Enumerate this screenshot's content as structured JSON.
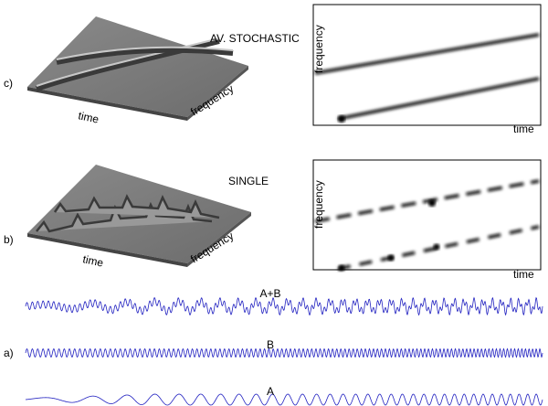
{
  "panels": [
    {
      "label": "c)",
      "title": "AV. STOCHASTIC",
      "surface": {
        "x_label": "time",
        "y_label": "frequency"
      },
      "tf_plot": {
        "x_label": "time",
        "y_label": "frequency"
      }
    },
    {
      "label": "b)",
      "title": "SINGLE",
      "surface": {
        "x_label": "time",
        "y_label": "frequency"
      },
      "tf_plot": {
        "x_label": "time",
        "y_label": "frequency"
      }
    }
  ],
  "signals": {
    "label": "a)",
    "traces": [
      "A+B",
      "B",
      "A"
    ]
  }
}
